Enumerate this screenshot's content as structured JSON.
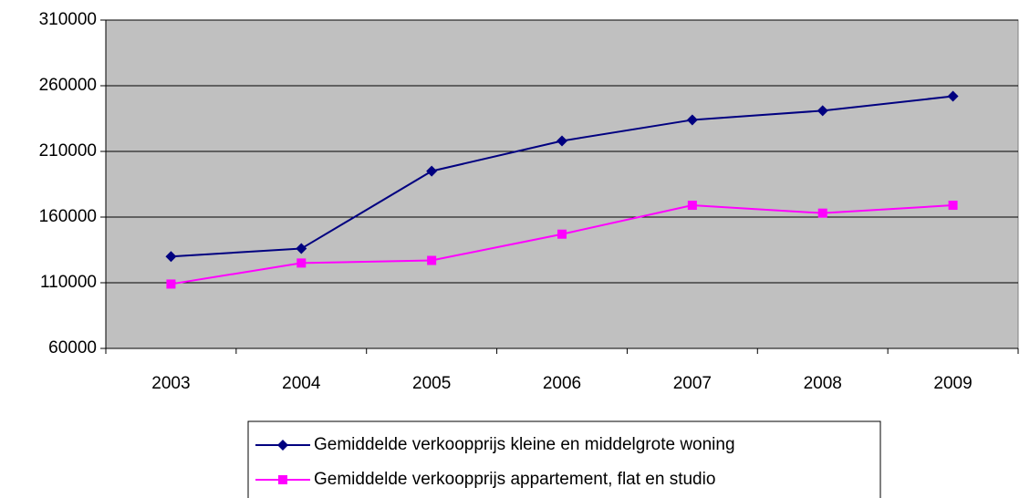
{
  "chart_data": {
    "type": "line",
    "categories": [
      "2003",
      "2004",
      "2005",
      "2006",
      "2007",
      "2008",
      "2009"
    ],
    "series": [
      {
        "name": "Gemiddelde verkoopprijs kleine en middelgrote woning",
        "color": "#000080",
        "marker": "diamond",
        "values": [
          130000,
          136000,
          195000,
          218000,
          234000,
          241000,
          252000
        ]
      },
      {
        "name": "Gemiddelde verkoopprijs appartement, flat en studio",
        "color": "#ff00ff",
        "marker": "square",
        "values": [
          109000,
          125000,
          127000,
          147000,
          169000,
          163000,
          169000
        ]
      }
    ],
    "ylim": [
      60000,
      310000
    ],
    "yticks": [
      60000,
      110000,
      160000,
      210000,
      260000,
      310000
    ],
    "grid": true,
    "plot_background": "#c0c0c0",
    "legend": "bottom"
  }
}
